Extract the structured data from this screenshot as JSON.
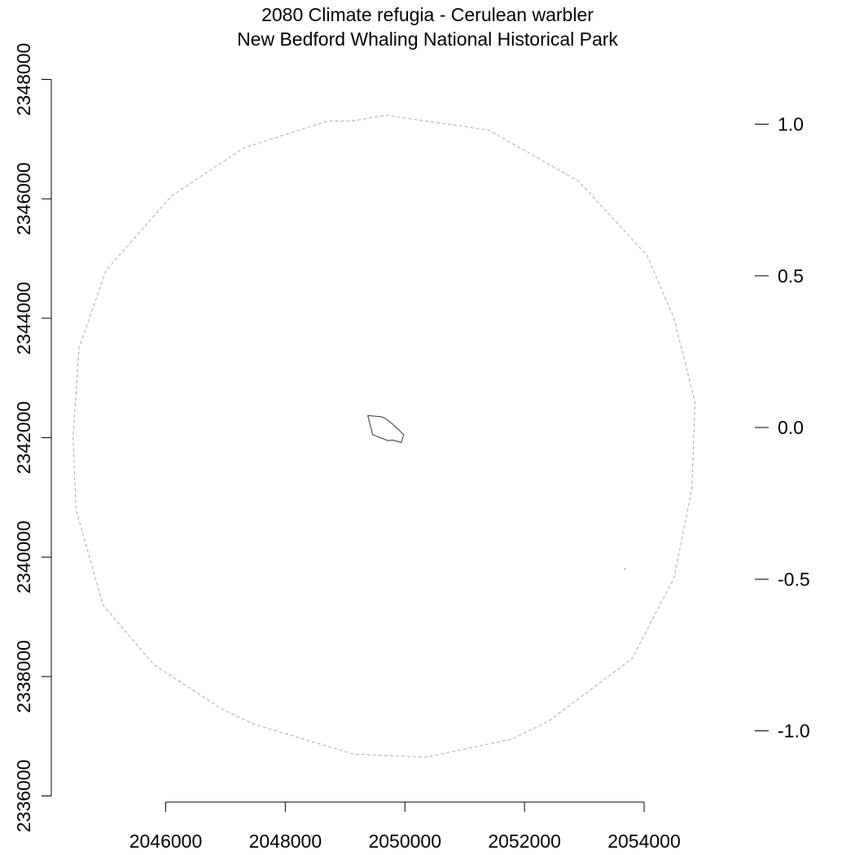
{
  "chart_data": {
    "type": "map",
    "title": "2080 Climate refugia - Cerulean warbler",
    "subtitle": "New Bedford Whaling National Historical Park",
    "x_axis": {
      "ticks": [
        2046000,
        2048000,
        2050000,
        2052000,
        2054000
      ],
      "tick_labels": [
        "2046000",
        "2048000",
        "2050000",
        "2052000",
        "2054000"
      ],
      "range": [
        2044200,
        2055000
      ]
    },
    "y_axis": {
      "ticks": [
        2336000,
        2338000,
        2340000,
        2342000,
        2344000,
        2346000,
        2348000
      ],
      "tick_labels": [
        "2336000",
        "2338000",
        "2340000",
        "2342000",
        "2344000",
        "2346000",
        "2348000"
      ],
      "range": [
        2336000,
        2348000
      ]
    },
    "legend_axis": {
      "ticks": [
        1.0,
        0.5,
        0.0,
        -0.5,
        -1.0
      ],
      "tick_labels": [
        "1.0",
        "0.5",
        "0.0",
        "-0.5",
        "-1.0"
      ],
      "position": "right"
    },
    "buffer_boundary": {
      "style": "dashed",
      "color": "#aaaaaa",
      "points": [
        [
          2049680,
          2347400
        ],
        [
          2051400,
          2347150
        ],
        [
          2052900,
          2346300
        ],
        [
          2054050,
          2345050
        ],
        [
          2054500,
          2344000
        ],
        [
          2054850,
          2342600
        ],
        [
          2054800,
          2341150
        ],
        [
          2054500,
          2339650
        ],
        [
          2053800,
          2338300
        ],
        [
          2052400,
          2337250
        ],
        [
          2051780,
          2336950
        ],
        [
          2050360,
          2336650
        ],
        [
          2049150,
          2336700
        ],
        [
          2047480,
          2337200
        ],
        [
          2046950,
          2337450
        ],
        [
          2045800,
          2338200
        ],
        [
          2044950,
          2339200
        ],
        [
          2044500,
          2340800
        ],
        [
          2044450,
          2342000
        ],
        [
          2044550,
          2343500
        ],
        [
          2045000,
          2344800
        ],
        [
          2046100,
          2346050
        ],
        [
          2047300,
          2346850
        ],
        [
          2048700,
          2347300
        ],
        [
          2049100,
          2347300
        ],
        [
          2049680,
          2347400
        ]
      ]
    },
    "park_boundary": {
      "color": "#333333",
      "points": [
        [
          2049380,
          2342370
        ],
        [
          2049600,
          2342350
        ],
        [
          2049660,
          2342330
        ],
        [
          2049780,
          2342240
        ],
        [
          2049980,
          2342050
        ],
        [
          2049940,
          2341920
        ],
        [
          2049790,
          2341960
        ],
        [
          2049720,
          2341950
        ],
        [
          2049460,
          2342050
        ],
        [
          2049380,
          2342370
        ]
      ]
    },
    "small_feature": {
      "point": [
        2053680,
        2339800
      ],
      "color": "#aaaaaa"
    }
  }
}
